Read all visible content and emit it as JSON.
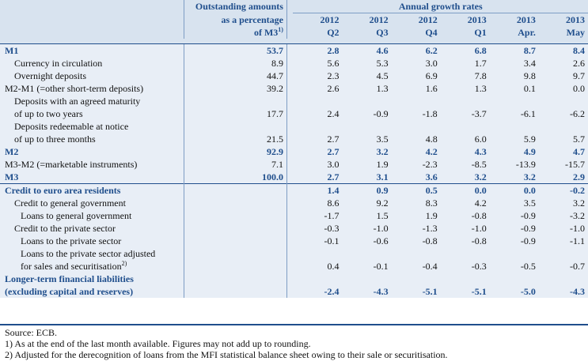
{
  "header": {
    "outstanding": [
      "Outstanding amounts",
      "as a percentage",
      "of M3"
    ],
    "outstanding_note": "1)",
    "annual": "Annual growth rates",
    "periods": [
      {
        "year": "2012",
        "period": "Q2"
      },
      {
        "year": "2012",
        "period": "Q3"
      },
      {
        "year": "2012",
        "period": "Q4"
      },
      {
        "year": "2013",
        "period": "Q1"
      },
      {
        "year": "2013",
        "period": "Apr."
      },
      {
        "year": "2013",
        "period": "May"
      }
    ]
  },
  "rows": [
    {
      "label": "M1",
      "share": "53.7",
      "values": [
        "2.8",
        "4.6",
        "6.2",
        "6.8",
        "8.7",
        "8.4"
      ],
      "style": "bold",
      "indent": 0
    },
    {
      "label": "Currency in circulation",
      "share": "8.9",
      "values": [
        "5.6",
        "5.3",
        "3.0",
        "1.7",
        "3.4",
        "2.6"
      ],
      "style": "normal",
      "indent": 1
    },
    {
      "label": "Overnight deposits",
      "share": "44.7",
      "values": [
        "2.3",
        "4.5",
        "6.9",
        "7.8",
        "9.8",
        "9.7"
      ],
      "style": "normal",
      "indent": 1
    },
    {
      "label": "M2-M1 (=other short-term deposits)",
      "share": "39.2",
      "values": [
        "2.6",
        "1.3",
        "1.6",
        "1.3",
        "0.1",
        "0.0"
      ],
      "style": "normal",
      "indent": 0
    },
    {
      "label": "Deposits with an agreed maturity",
      "share": "",
      "values": [
        "",
        "",
        "",
        "",
        "",
        ""
      ],
      "style": "normal",
      "indent": 1
    },
    {
      "label": "of up to two years",
      "share": "17.7",
      "values": [
        "2.4",
        "-0.9",
        "-1.8",
        "-3.7",
        "-6.1",
        "-6.2"
      ],
      "style": "normal",
      "indent": 1
    },
    {
      "label": "Deposits redeemable at notice",
      "share": "",
      "values": [
        "",
        "",
        "",
        "",
        "",
        ""
      ],
      "style": "normal",
      "indent": 1
    },
    {
      "label": "of up to three months",
      "share": "21.5",
      "values": [
        "2.7",
        "3.5",
        "4.8",
        "6.0",
        "5.9",
        "5.7"
      ],
      "style": "normal",
      "indent": 1
    },
    {
      "label": "M2",
      "share": "92.9",
      "values": [
        "2.7",
        "3.2",
        "4.2",
        "4.3",
        "4.9",
        "4.7"
      ],
      "style": "bold",
      "indent": 0
    },
    {
      "label": "M3-M2 (=marketable instruments)",
      "share": "7.1",
      "values": [
        "3.0",
        "1.9",
        "-2.3",
        "-8.5",
        "-13.9",
        "-15.7"
      ],
      "style": "normal",
      "indent": 0
    },
    {
      "label": "M3",
      "share": "100.0",
      "values": [
        "2.7",
        "3.1",
        "3.6",
        "3.2",
        "3.2",
        "2.9"
      ],
      "style": "bold",
      "indent": 0
    },
    {
      "label": "Credit to euro area residents",
      "share": "",
      "values": [
        "1.4",
        "0.9",
        "0.5",
        "0.0",
        "0.0",
        "-0.2"
      ],
      "style": "bold",
      "indent": 0
    },
    {
      "label": "Credit to general government",
      "share": "",
      "values": [
        "8.6",
        "9.2",
        "8.3",
        "4.2",
        "3.5",
        "3.2"
      ],
      "style": "normal",
      "indent": 1
    },
    {
      "label": "Loans to general government",
      "share": "",
      "values": [
        "-1.7",
        "1.5",
        "1.9",
        "-0.8",
        "-0.9",
        "-3.2"
      ],
      "style": "normal",
      "indent": 2
    },
    {
      "label": "Credit to the private sector",
      "share": "",
      "values": [
        "-0.3",
        "-1.0",
        "-1.3",
        "-1.0",
        "-0.9",
        "-1.0"
      ],
      "style": "normal",
      "indent": 1
    },
    {
      "label": "Loans to the private sector",
      "share": "",
      "values": [
        "-0.1",
        "-0.6",
        "-0.8",
        "-0.8",
        "-0.9",
        "-1.1"
      ],
      "style": "normal",
      "indent": 2
    },
    {
      "label": "Loans to the private sector adjusted",
      "share": "",
      "values": [
        "",
        "",
        "",
        "",
        "",
        ""
      ],
      "style": "normal",
      "indent": 2
    },
    {
      "label": "for sales and securitisation",
      "label_note": "2)",
      "share": "",
      "values": [
        "0.4",
        "-0.1",
        "-0.4",
        "-0.3",
        "-0.5",
        "-0.7"
      ],
      "style": "normal",
      "indent": 2
    },
    {
      "label": "Longer-term financial liabilities",
      "share": "",
      "values": [
        "",
        "",
        "",
        "",
        "",
        ""
      ],
      "style": "bold",
      "indent": 0
    },
    {
      "label": "(excluding capital and reserves)",
      "share": "",
      "values": [
        "-2.4",
        "-4.3",
        "-5.1",
        "-5.1",
        "-5.0",
        "-4.3"
      ],
      "style": "bold",
      "indent": 0
    }
  ],
  "footnotes": [
    "Source: ECB.",
    "1) As at the end of the last month available. Figures may not add up to rounding.",
    "2) Adjusted for the derecognition of loans from the MFI statistical balance sheet owing to their sale or securitisation."
  ]
}
